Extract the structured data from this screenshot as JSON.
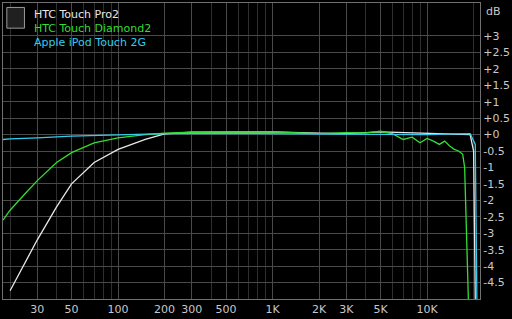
{
  "chart_data": {
    "type": "line",
    "ylabel": "dB",
    "log": "x",
    "grid": true,
    "legend": "top left",
    "xlim": [
      18,
      22000
    ],
    "ylim": [
      -5,
      4
    ],
    "xticks": [
      30,
      50,
      100,
      200,
      300,
      500,
      {
        "value": 1000,
        "label": "1K"
      },
      {
        "value": 2000,
        "label": "2K"
      },
      {
        "value": 3000,
        "label": "3K"
      },
      {
        "value": 5000,
        "label": "5K"
      },
      {
        "value": 10000,
        "label": "10K"
      }
    ],
    "yticks": [
      {
        "value": 3,
        "label": "+3"
      },
      {
        "value": 2.5,
        "label": "+2.5"
      },
      {
        "value": 2,
        "label": "+2"
      },
      {
        "value": 1.5,
        "label": "+1.5"
      },
      {
        "value": 1,
        "label": "+1"
      },
      {
        "value": 0.5,
        "label": "+0.5"
      },
      {
        "value": 0,
        "label": "+0"
      },
      -0.5,
      -1,
      -1.5,
      -2,
      -2.5,
      -3,
      -3.5,
      -4,
      -4.5
    ],
    "series": [
      {
        "name": "HTC Touch Pro2",
        "color": "#e8e8e8",
        "x": [
          20,
          25,
          30,
          40,
          50,
          70,
          100,
          150,
          200,
          300,
          500,
          1000,
          2000,
          3000,
          5000,
          10000,
          15000,
          19000,
          20000,
          20500
        ],
        "values": [
          -4.75,
          -3.9,
          -3.2,
          -2.2,
          -1.5,
          -0.85,
          -0.45,
          -0.15,
          0.02,
          0.07,
          0.08,
          0.08,
          0.04,
          0.03,
          0.08,
          0.03,
          0.02,
          0.0,
          -0.5,
          -5
        ]
      },
      {
        "name": "HTC Touch Diamond2",
        "color": "#33dd33",
        "x": [
          18,
          20,
          25,
          30,
          40,
          50,
          70,
          100,
          150,
          200,
          300,
          500,
          1000,
          2000,
          3000,
          4000,
          5000,
          6000,
          7000,
          8000,
          9000,
          10000,
          11000,
          12000,
          13000,
          14000,
          15000,
          16000,
          17000,
          17500,
          18000,
          18500
        ],
        "values": [
          -2.6,
          -2.3,
          -1.8,
          -1.4,
          -0.85,
          -0.55,
          -0.25,
          -0.1,
          0.0,
          0.04,
          0.07,
          0.08,
          0.08,
          0.03,
          0.06,
          0.05,
          0.1,
          0.02,
          -0.15,
          -0.08,
          -0.25,
          -0.12,
          -0.2,
          -0.3,
          -0.2,
          -0.35,
          -0.45,
          -0.5,
          -0.6,
          -1.0,
          -3,
          -5
        ]
      },
      {
        "name": "Apple iPod Touch 2G",
        "color": "#33ccee",
        "x": [
          18,
          20,
          30,
          50,
          100,
          200,
          500,
          1000,
          2000,
          3000,
          5000,
          10000,
          15000,
          19000,
          20500,
          21000
        ],
        "values": [
          -0.15,
          -0.13,
          -0.1,
          -0.05,
          -0.01,
          0.03,
          0.03,
          0.02,
          0.02,
          0.0,
          0.0,
          0.0,
          0.02,
          0.03,
          -0.3,
          -5
        ]
      }
    ]
  }
}
